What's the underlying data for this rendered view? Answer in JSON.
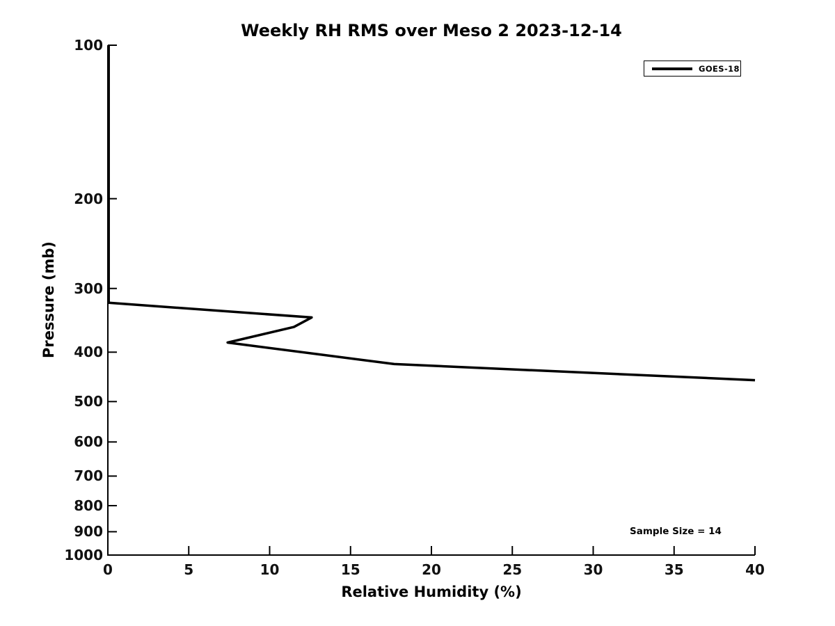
{
  "chart_data": {
    "type": "line",
    "title": "Weekly RH RMS over Meso 2 2023-12-14",
    "xlabel": "Relative Humidity (%)",
    "ylabel": "Pressure (mb)",
    "xlim": [
      0,
      40
    ],
    "ylim": [
      100,
      1000
    ],
    "y_scale": "log",
    "y_inverted": true,
    "x_ticks": [
      0,
      5,
      10,
      15,
      20,
      25,
      30,
      35,
      40
    ],
    "y_ticks": [
      100,
      200,
      300,
      400,
      500,
      600,
      700,
      800,
      900,
      1000
    ],
    "grid": false,
    "legend_position": "upper right",
    "annotation": "Sample Size = 14",
    "series": [
      {
        "name": "GOES-18",
        "color": "#000000",
        "points": [
          {
            "rh": 0.05,
            "pressure": 100
          },
          {
            "rh": 0.05,
            "pressure": 320
          },
          {
            "rh": 12.6,
            "pressure": 342
          },
          {
            "rh": 11.5,
            "pressure": 357
          },
          {
            "rh": 7.4,
            "pressure": 383
          },
          {
            "rh": 17.7,
            "pressure": 422
          },
          {
            "rh": 40.0,
            "pressure": 454
          }
        ]
      }
    ]
  },
  "colors": {
    "line": "#000000",
    "text": "#111111",
    "background": "#ffffff"
  }
}
